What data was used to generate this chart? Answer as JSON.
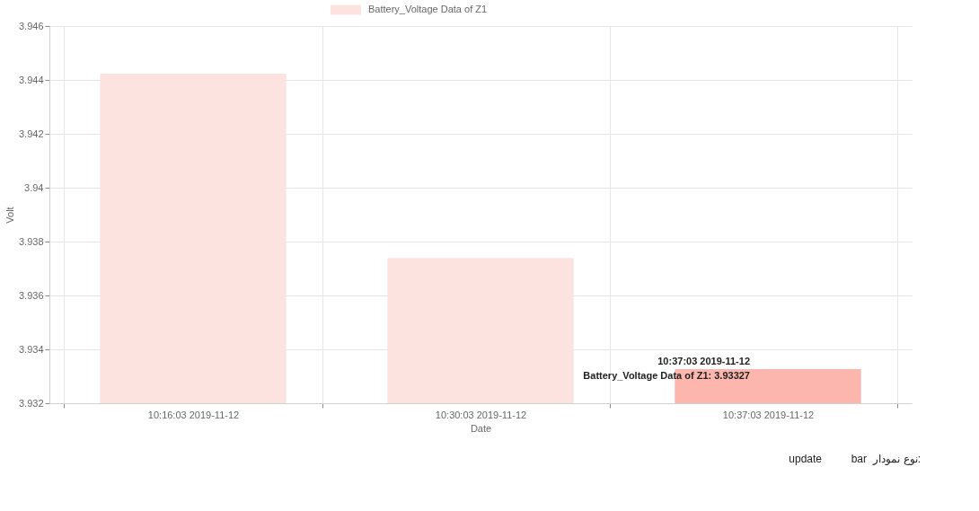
{
  "chart_data": {
    "type": "bar",
    "xlabel": "Date",
    "ylabel": "Volt",
    "categories": [
      "10:16:03 2019-11-12",
      "10:30:03 2019-11-12",
      "10:37:03 2019-11-12"
    ],
    "series": [
      {
        "name": "Battery_Voltage Data of Z1",
        "color": "#fde3e0",
        "colors": [
          "#fde3e0",
          "#fde3e0",
          "#fdb6ae"
        ],
        "values": [
          3.94423,
          3.93739,
          3.93327
        ]
      }
    ],
    "ylim": [
      3.932,
      3.946
    ],
    "yticks": [
      3.932,
      3.934,
      3.936,
      3.938,
      3.94,
      3.942,
      3.944,
      3.946
    ],
    "grid": true,
    "legend": "top",
    "annotations": [
      {
        "text": "10:37:03 2019-11-12\nBattery_Voltage Data of Z1: 3.93327",
        "x": "10:37:03 2019-11-12",
        "y": 3.93327
      },
      "نوع نمودار:",
      "bar",
      "update"
    ]
  }
}
